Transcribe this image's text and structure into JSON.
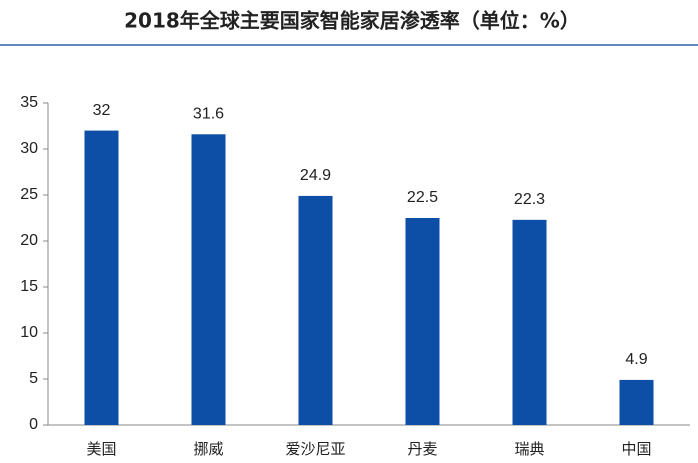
{
  "chart_data": {
    "type": "bar",
    "title": "2018年全球主要国家智能家居渗透率（单位：%）",
    "categories": [
      "美国",
      "挪威",
      "爱沙尼亚",
      "丹麦",
      "瑞典",
      "中国"
    ],
    "values": [
      32,
      31.6,
      24.9,
      22.5,
      22.3,
      4.9
    ],
    "color": "#0d4ea6",
    "ylim": [
      0,
      35
    ],
    "yticks": [
      0,
      5,
      10,
      15,
      20,
      25,
      30,
      35
    ],
    "grid": false
  }
}
